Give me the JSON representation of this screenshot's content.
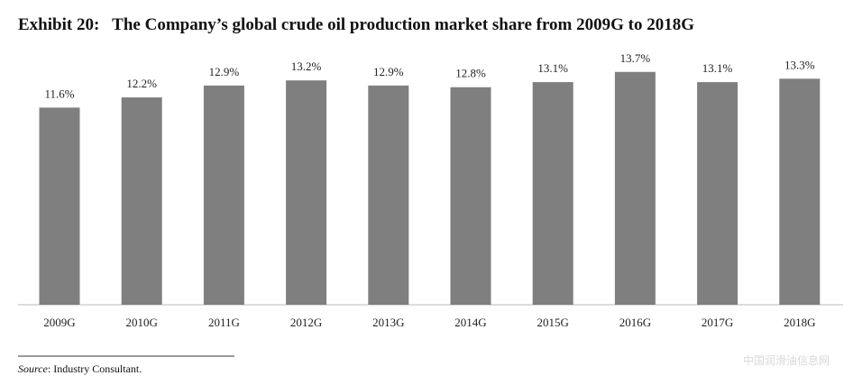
{
  "chart_data": {
    "type": "bar",
    "title": "Exhibit 20:   The Company’s global crude oil production market share from 2009G to 2018G",
    "categories": [
      "2009G",
      "2010G",
      "2011G",
      "2012G",
      "2013G",
      "2014G",
      "2015G",
      "2016G",
      "2017G",
      "2018G"
    ],
    "values": [
      11.6,
      12.2,
      12.9,
      13.2,
      12.9,
      12.8,
      13.1,
      13.7,
      13.1,
      13.3
    ],
    "value_labels": [
      "11.6%",
      "12.2%",
      "12.9%",
      "13.2%",
      "12.9%",
      "12.8%",
      "13.1%",
      "13.7%",
      "13.1%",
      "13.3%"
    ],
    "color": "#7f7f7f"
  },
  "source": {
    "label": "Source",
    "text": ": Industry Consultant."
  },
  "watermark": "中国润滑油信息网"
}
